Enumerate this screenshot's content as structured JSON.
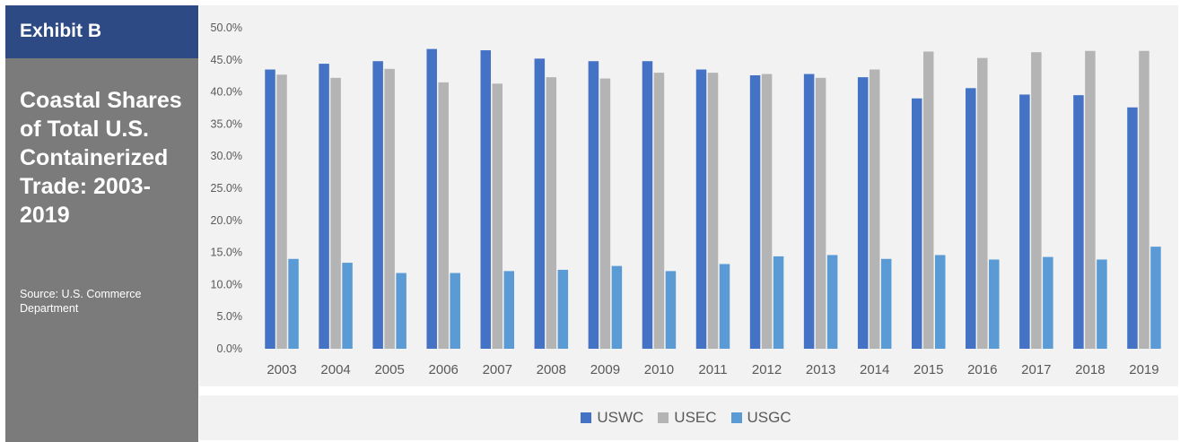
{
  "sidebar": {
    "exhibit_label": "Exhibit B",
    "title": "Coastal Shares of Total U.S. Containerized Trade: 2003-2019",
    "source": "Source: U.S. Commerce Department"
  },
  "colors": {
    "USWC": "#4472c4",
    "USEC": "#b4b4b4",
    "USGC": "#5b9bd5"
  },
  "chart_data": {
    "type": "bar",
    "title": "Coastal Shares of Total U.S. Containerized Trade: 2003-2019",
    "categories": [
      "2003",
      "2004",
      "2005",
      "2006",
      "2007",
      "2008",
      "2009",
      "2010",
      "2011",
      "2012",
      "2013",
      "2014",
      "2015",
      "2016",
      "2017",
      "2018",
      "2019"
    ],
    "series": [
      {
        "name": "USWC",
        "values": [
          43.5,
          44.4,
          44.8,
          46.7,
          46.5,
          45.2,
          44.8,
          44.8,
          43.5,
          42.6,
          42.8,
          42.3,
          39.0,
          40.6,
          39.6,
          39.5,
          37.6
        ]
      },
      {
        "name": "USEC",
        "values": [
          42.7,
          42.2,
          43.6,
          41.5,
          41.3,
          42.3,
          42.1,
          43.0,
          43.0,
          42.8,
          42.2,
          43.5,
          46.3,
          45.3,
          46.2,
          46.4,
          46.4
        ]
      },
      {
        "name": "USGC",
        "values": [
          14.0,
          13.4,
          11.8,
          11.8,
          12.1,
          12.3,
          12.9,
          12.1,
          13.2,
          14.4,
          14.6,
          14.0,
          14.6,
          13.9,
          14.3,
          13.9,
          15.9
        ]
      }
    ],
    "ylim": [
      0,
      50
    ],
    "yticks": [
      "0.0%",
      "5.0%",
      "10.0%",
      "15.0%",
      "20.0%",
      "25.0%",
      "30.0%",
      "35.0%",
      "40.0%",
      "45.0%",
      "50.0%"
    ],
    "ytick_values": [
      0,
      5,
      10,
      15,
      20,
      25,
      30,
      35,
      40,
      45,
      50
    ],
    "grid": false,
    "legend_position": "bottom"
  }
}
